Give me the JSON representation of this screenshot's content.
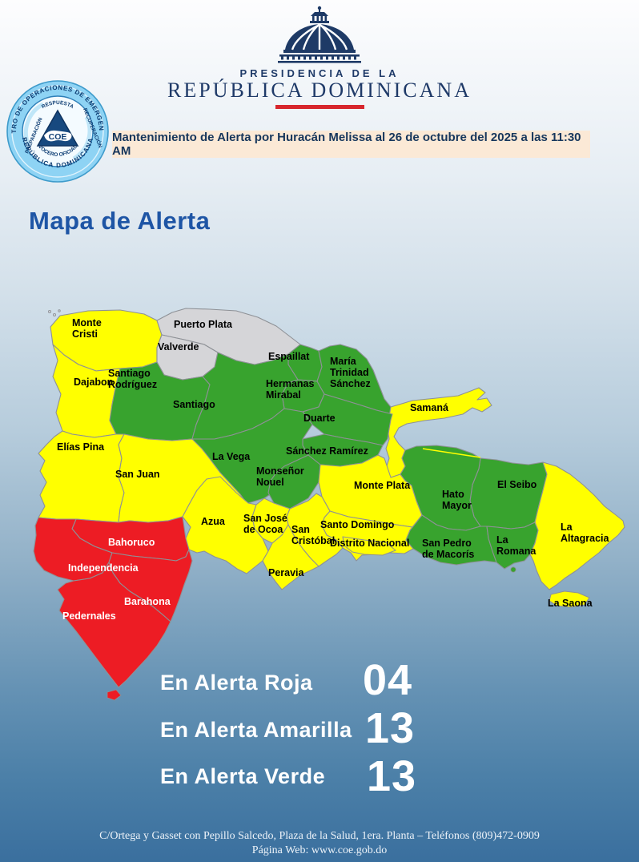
{
  "header": {
    "org_small": "PRESIDENCIA DE LA",
    "org_large": "REPÚBLICA DOMINICANA",
    "accent_color": "#D7262D",
    "text_color": "#1F3A68"
  },
  "seal": {
    "ring_top": "CENTRO DE OPERACIONES DE EMERGENCIAS",
    "ring_bottom": "REPÚBLICA DOMINICANA",
    "inner_top": "RESPUESTA",
    "inner_left": "PREPARACIÓN",
    "inner_right": "RECUPERACIÓN",
    "inner_bottom": "VOCERO OFICIAL",
    "center": "COE"
  },
  "banner": {
    "text": "Mantenimiento de Alerta por Huracán Melissa al 26 de octubre del 2025 a las 11:30 AM",
    "bg": "#FBE9D6",
    "color": "#16365C"
  },
  "title": {
    "text": "Mapa de Alerta",
    "color": "#1E55A5"
  },
  "map": {
    "alert_colors": {
      "roja": "#ED1C24",
      "amarilla": "#FFFF00",
      "verde": "#38A32E",
      "sin_alerta": "#D5D5D8"
    },
    "border_color": "#8E9196",
    "provinces": [
      {
        "id": "monte-cristi",
        "name": "Monte Cristi",
        "label": "Monte\nCristi",
        "alert": "amarilla"
      },
      {
        "id": "puerto-plata",
        "name": "Puerto Plata",
        "label": "Puerto Plata",
        "alert": "sin_alerta"
      },
      {
        "id": "valverde",
        "name": "Valverde",
        "label": "Valverde",
        "alert": "sin_alerta"
      },
      {
        "id": "espaillat",
        "name": "Espaillat",
        "label": "Espaillat",
        "alert": "verde"
      },
      {
        "id": "maria-trinidad-sanchez",
        "name": "María Trinidad Sánchez",
        "label": "María\nTrinidad\nSánchez",
        "alert": "verde"
      },
      {
        "id": "dajabon",
        "name": "Dajabon",
        "label": "Dajabon",
        "alert": "amarilla"
      },
      {
        "id": "santiago-rodriguez",
        "name": "Santiago Rodríguez",
        "label": "Santiago\nRodríguez",
        "alert": "verde"
      },
      {
        "id": "hermanas-mirabal",
        "name": "Hermanas Mirabal",
        "label": "Hermanas\nMirabal",
        "alert": "verde"
      },
      {
        "id": "santiago",
        "name": "Santiago",
        "label": "Santiago",
        "alert": "verde"
      },
      {
        "id": "samana",
        "name": "Samaná",
        "label": "Samaná",
        "alert": "amarilla"
      },
      {
        "id": "duarte",
        "name": "Duarte",
        "label": "Duarte",
        "alert": "verde"
      },
      {
        "id": "elias-pina",
        "name": "Elías Pina",
        "label": "Elías Pina",
        "alert": "amarilla"
      },
      {
        "id": "sanchez-ramirez",
        "name": "Sánchez Ramírez",
        "label": "Sánchez Ramírez",
        "alert": "verde"
      },
      {
        "id": "la-vega",
        "name": "La Vega",
        "label": "La Vega",
        "alert": "verde"
      },
      {
        "id": "san-juan",
        "name": "San Juan",
        "label": "San Juan",
        "alert": "amarilla"
      },
      {
        "id": "monsenor-nouel",
        "name": "Monseñor Nouel",
        "label": "Monseñor\nNouel",
        "alert": "verde"
      },
      {
        "id": "monte-plata",
        "name": "Monte Plata",
        "label": "Monte Plata",
        "alert": "amarilla"
      },
      {
        "id": "el-seibo",
        "name": "El Seibo",
        "label": "El Seibo",
        "alert": "verde"
      },
      {
        "id": "hato-mayor",
        "name": "Hato Mayor",
        "label": "Hato\nMayor",
        "alert": "verde"
      },
      {
        "id": "azua",
        "name": "Azua",
        "label": "Azua",
        "alert": "amarilla"
      },
      {
        "id": "san-jose-de-ocoa",
        "name": "San José de Ocoa",
        "label": "San José\nde Ocoa",
        "alert": "amarilla"
      },
      {
        "id": "santo-domingo",
        "name": "Santo Domingo",
        "label": "Santo Domingo",
        "alert": "amarilla"
      },
      {
        "id": "san-cristobal",
        "name": "San Cristóbal",
        "label": "San\nCristóbal",
        "alert": "amarilla"
      },
      {
        "id": "distrito-nacional",
        "name": "Distrito Nacional",
        "label": "Distrito Nacional",
        "alert": "amarilla"
      },
      {
        "id": "peravia",
        "name": "Peravia",
        "label": "Peravia",
        "alert": "amarilla"
      },
      {
        "id": "san-pedro-de-macoris",
        "name": "San Pedro de Macorís",
        "label": "San Pedro\nde Macorís",
        "alert": "verde"
      },
      {
        "id": "la-romana",
        "name": "La Romana",
        "label": "La\nRomana",
        "alert": "verde"
      },
      {
        "id": "la-altagracia",
        "name": "La Altagracia",
        "label": "La\nAltagracia",
        "alert": "amarilla"
      },
      {
        "id": "bahoruco",
        "name": "Bahoruco",
        "label": "Bahoruco",
        "alert": "roja"
      },
      {
        "id": "independencia",
        "name": "Independencia",
        "label": "Independencia",
        "alert": "roja"
      },
      {
        "id": "barahona",
        "name": "Barahona",
        "label": "Barahona",
        "alert": "roja"
      },
      {
        "id": "pedernales",
        "name": "Pedernales",
        "label": "Pedernales",
        "alert": "roja"
      },
      {
        "id": "la-saona",
        "name": "La Saona",
        "label": "La Saona",
        "alert": "amarilla"
      }
    ]
  },
  "legend": {
    "color": "#FFFFFF",
    "rows": [
      {
        "label": "En Alerta Roja",
        "value": "04"
      },
      {
        "label": "En Alerta Amarilla",
        "value": "13"
      },
      {
        "label": "En Alerta Verde",
        "value": "13"
      }
    ]
  },
  "footer": {
    "color": "#EDF3F9",
    "line1": "C/Ortega y Gasset con Pepillo Salcedo, Plaza de la Salud, 1era. Planta – Teléfonos (809)472-0909",
    "line2": "Página Web: www.coe.gob.do"
  }
}
